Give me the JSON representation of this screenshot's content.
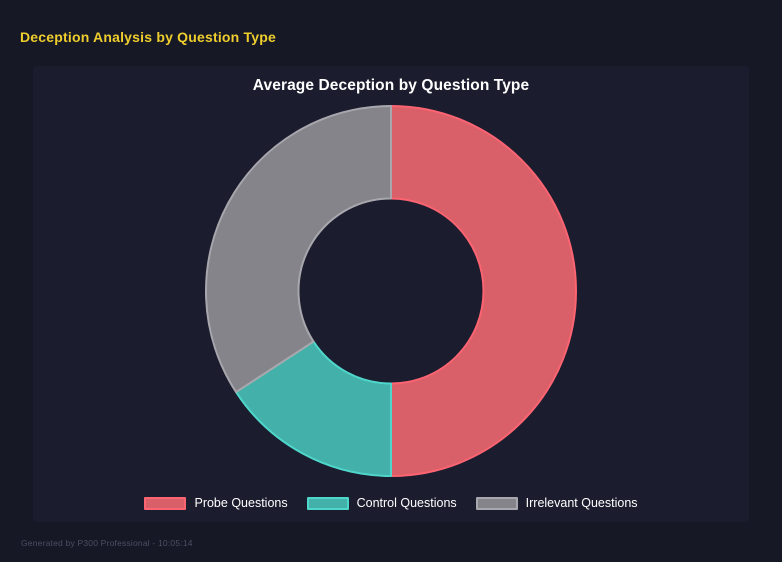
{
  "page": {
    "title": "Deception Analysis by Question Type",
    "footer": "Generated by P300 Professional - 10:05:14"
  },
  "chart_data": {
    "type": "pie",
    "variant": "donut",
    "title": "Average Deception by Question Type",
    "categories": [
      "Probe Questions",
      "Control Questions",
      "Irrelevant Questions"
    ],
    "values": [
      50,
      15.8,
      34.2
    ],
    "unit": "percent_of_circle",
    "segment_colors": [
      "#d95f68",
      "#43b0a9",
      "#85848a"
    ],
    "segment_border_colors": [
      "#fc6472",
      "#4fd6ca",
      "#a8a7ad"
    ],
    "start_angle_deg": 0,
    "direction": "clockwise",
    "cutout_ratio": 0.5,
    "legend_position": "bottom",
    "grid": false
  },
  "theme": {
    "page_bg": "#161826",
    "panel_bg": "#1b1c2e",
    "accent_yellow": "#eecd2d",
    "text_white": "#ffffff",
    "footer_gray": "#4b4f62"
  }
}
